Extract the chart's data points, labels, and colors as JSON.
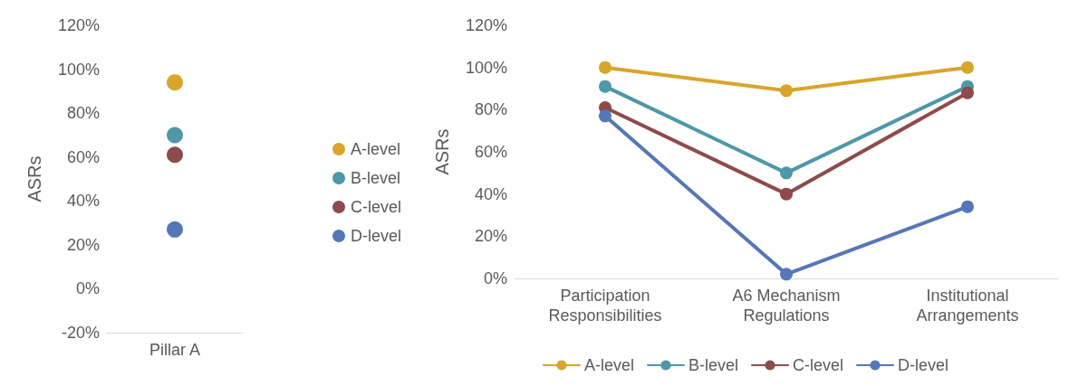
{
  "chart_data": [
    {
      "type": "scatter",
      "ylabel": "ASRs",
      "categories": [
        "Pillar A"
      ],
      "ylim": [
        -20,
        120
      ],
      "yticks": [
        {
          "value": -20,
          "label": "-20%"
        },
        {
          "value": 0,
          "label": "0%"
        },
        {
          "value": 20,
          "label": "20%"
        },
        {
          "value": 40,
          "label": "40%"
        },
        {
          "value": 60,
          "label": "60%"
        },
        {
          "value": 80,
          "label": "80%"
        },
        {
          "value": 100,
          "label": "100%"
        },
        {
          "value": 120,
          "label": "120%"
        }
      ],
      "grid": false,
      "legend": "right",
      "marker": "circle",
      "series": [
        {
          "name": "A-level",
          "color": "#d9a52b",
          "values": [
            94
          ]
        },
        {
          "name": "B-level",
          "color": "#4e98a8",
          "values": [
            70
          ]
        },
        {
          "name": "C-level",
          "color": "#8e4b4b",
          "values": [
            61
          ]
        },
        {
          "name": "D-level",
          "color": "#5577b8",
          "values": [
            27
          ]
        }
      ]
    },
    {
      "type": "line",
      "ylabel": "ASRs",
      "categories": [
        "Participation\nResponsibilities",
        "A6 Mechanism\nRegulations",
        "Institutional\nArrangements"
      ],
      "ylim": [
        0,
        120
      ],
      "yticks": [
        {
          "value": 0,
          "label": "0%"
        },
        {
          "value": 20,
          "label": "20%"
        },
        {
          "value": 40,
          "label": "40%"
        },
        {
          "value": 60,
          "label": "60%"
        },
        {
          "value": 80,
          "label": "80%"
        },
        {
          "value": 100,
          "label": "100%"
        },
        {
          "value": 120,
          "label": "120%"
        }
      ],
      "grid": false,
      "legend": "bottom",
      "marker": "circle",
      "line_style": "solid",
      "series": [
        {
          "name": "A-level",
          "color": "#d9a52b",
          "values": [
            100,
            89,
            100
          ]
        },
        {
          "name": "B-level",
          "color": "#4e98a8",
          "values": [
            91,
            50,
            91
          ]
        },
        {
          "name": "C-level",
          "color": "#8e4b4b",
          "values": [
            81,
            40,
            88
          ]
        },
        {
          "name": "D-level",
          "color": "#5577b8",
          "values": [
            77,
            2,
            34
          ]
        }
      ]
    }
  ]
}
